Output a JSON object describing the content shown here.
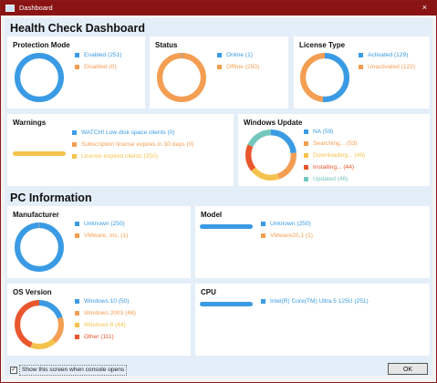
{
  "window": {
    "title": "Dashboard",
    "close_glyph": "×"
  },
  "health": {
    "title": "Health Check Dashboard"
  },
  "pc_info": {
    "title": "PC Information"
  },
  "colors": {
    "blue": "#3a9be4",
    "orange": "#f49e53",
    "yellow": "#f4c34e",
    "red": "#e8572d",
    "teal": "#73c7bd",
    "titlebar": "#8a1414"
  },
  "cards": {
    "protection": {
      "title": "Protection Mode",
      "legend": [
        {
          "label": "Enabled (251)",
          "color": "#3a9be4",
          "value": 251
        },
        {
          "label": "Disabled (0)",
          "color": "#f49e53",
          "value": 0
        }
      ]
    },
    "status": {
      "title": "Status",
      "legend": [
        {
          "label": "Online (1)",
          "color": "#3a9be4",
          "value": 1
        },
        {
          "label": "Offline (250)",
          "color": "#f49e53",
          "value": 250
        }
      ]
    },
    "license": {
      "title": "License Type",
      "legend": [
        {
          "label": "Activated (129)",
          "color": "#3a9be4",
          "value": 129
        },
        {
          "label": "Unactivated (122)",
          "color": "#f49e53",
          "value": 122
        }
      ]
    },
    "warnings": {
      "title": "Warnings",
      "legend": [
        {
          "label": "WATCH! Low disk space clients (0)",
          "color": "#3a9be4",
          "value": 0
        },
        {
          "label": "Subscription license expires in 30 days (0)",
          "color": "#f49e53",
          "value": 0
        },
        {
          "label": "License expired clients (250)",
          "color": "#f4c34e",
          "value": 250
        }
      ]
    },
    "winupdate": {
      "title": "Windows Update",
      "legend": [
        {
          "label": "NA (59)",
          "color": "#3a9be4",
          "value": 59
        },
        {
          "label": "Searching... (53)",
          "color": "#f49e53",
          "value": 53
        },
        {
          "label": "Downloading... (49)",
          "color": "#f4c34e",
          "value": 49
        },
        {
          "label": "Installing... (44)",
          "color": "#e8572d",
          "value": 44
        },
        {
          "label": "Updated (46)",
          "color": "#73c7bd",
          "value": 46
        }
      ]
    },
    "manufacturer": {
      "title": "Manufacturer",
      "legend": [
        {
          "label": "Unknown (250)",
          "color": "#3a9be4",
          "value": 250
        },
        {
          "label": "VMware, Inc. (1)",
          "color": "#f49e53",
          "value": 1
        }
      ]
    },
    "model": {
      "title": "Model",
      "legend": [
        {
          "label": "Unknown (250)",
          "color": "#3a9be4",
          "value": 250
        },
        {
          "label": "VMware20,1 (1)",
          "color": "#f49e53",
          "value": 1
        }
      ]
    },
    "osversion": {
      "title": "OS Version",
      "legend": [
        {
          "label": "Windows 10 (50)",
          "color": "#3a9be4",
          "value": 50
        },
        {
          "label": "Windows 2003 (46)",
          "color": "#f49e53",
          "value": 46
        },
        {
          "label": "Windows 8 (44)",
          "color": "#f4c34e",
          "value": 44
        },
        {
          "label": "Other (111)",
          "color": "#e8572d",
          "value": 111
        }
      ]
    },
    "cpu": {
      "title": "CPU",
      "legend": [
        {
          "label": "Intel(R) Core(TM) Ultra 5 125U (251)",
          "color": "#3a9be4",
          "value": 251
        }
      ]
    }
  },
  "footer": {
    "checkbox_label": "Show this screen when console opens",
    "checked": true,
    "check_glyph": "✓",
    "ok_label": "OK"
  }
}
